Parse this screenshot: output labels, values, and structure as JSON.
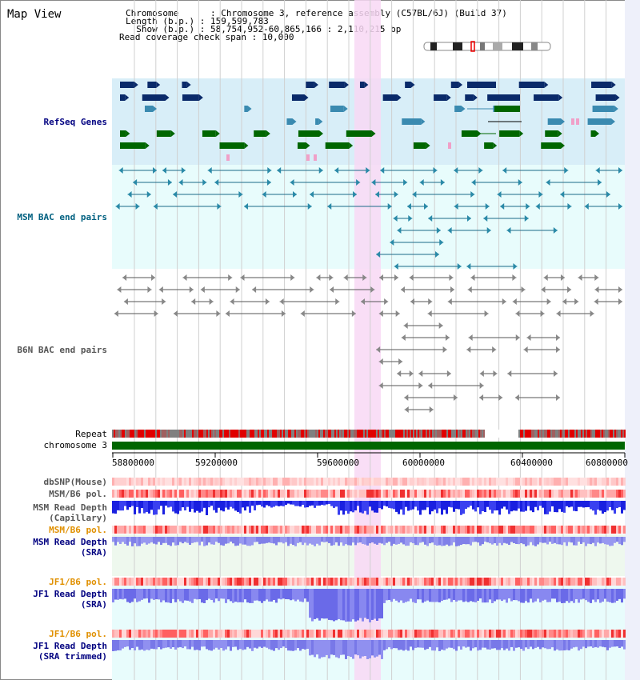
{
  "header": {
    "title": "Map View",
    "lines": [
      "Chromosome      : Chromosome 3, reference assembly (C57BL/6J) (Build 37)",
      "Length (b.p.) : 159,599,783",
      "  Show (b.p.) : 58,754,952-60,865,166 : 2,110,215 bp",
      "Read coverage check span : 10,000"
    ]
  },
  "tracks": {
    "refseq": "RefSeq Genes",
    "msm_bac": "MSM BAC end pairs",
    "b6n_bac": "B6N BAC end pairs",
    "repeat": "Repeat",
    "chromosome": "chromosome 3",
    "dbsnp": "dbSNP(Mouse)",
    "msm_pol_1": "MSM/B6 pol.",
    "msm_depth_cap_1": "MSM Read Depth",
    "msm_depth_cap_2": "(Capillary)",
    "msm_pol_2": "MSM/B6 pol.",
    "msm_depth_sra_1": "MSM Read Depth",
    "msm_depth_sra_2": "(SRA)",
    "jf1_pol_1": "JF1/B6 pol.",
    "jf1_depth_sra_1": "JF1 Read Depth",
    "jf1_depth_sra_2": "(SRA)",
    "jf1_pol_2": "JF1/B6 pol.",
    "jf1_depth_trim_1": "JF1 Read Depth",
    "jf1_depth_trim_2": "(SRA trimmed)"
  },
  "axis": {
    "ticks": [
      "58800000",
      "59200000",
      "59600000",
      "60000000",
      "60400000",
      "60800000"
    ]
  },
  "colors": {
    "highlight": "#f8d8f4",
    "refseq_bg": "#d8eef8",
    "msm_bg": "#e8fcfc",
    "chromosome": "#006600",
    "label_blue": "#000080",
    "label_orange": "#e09000"
  }
}
